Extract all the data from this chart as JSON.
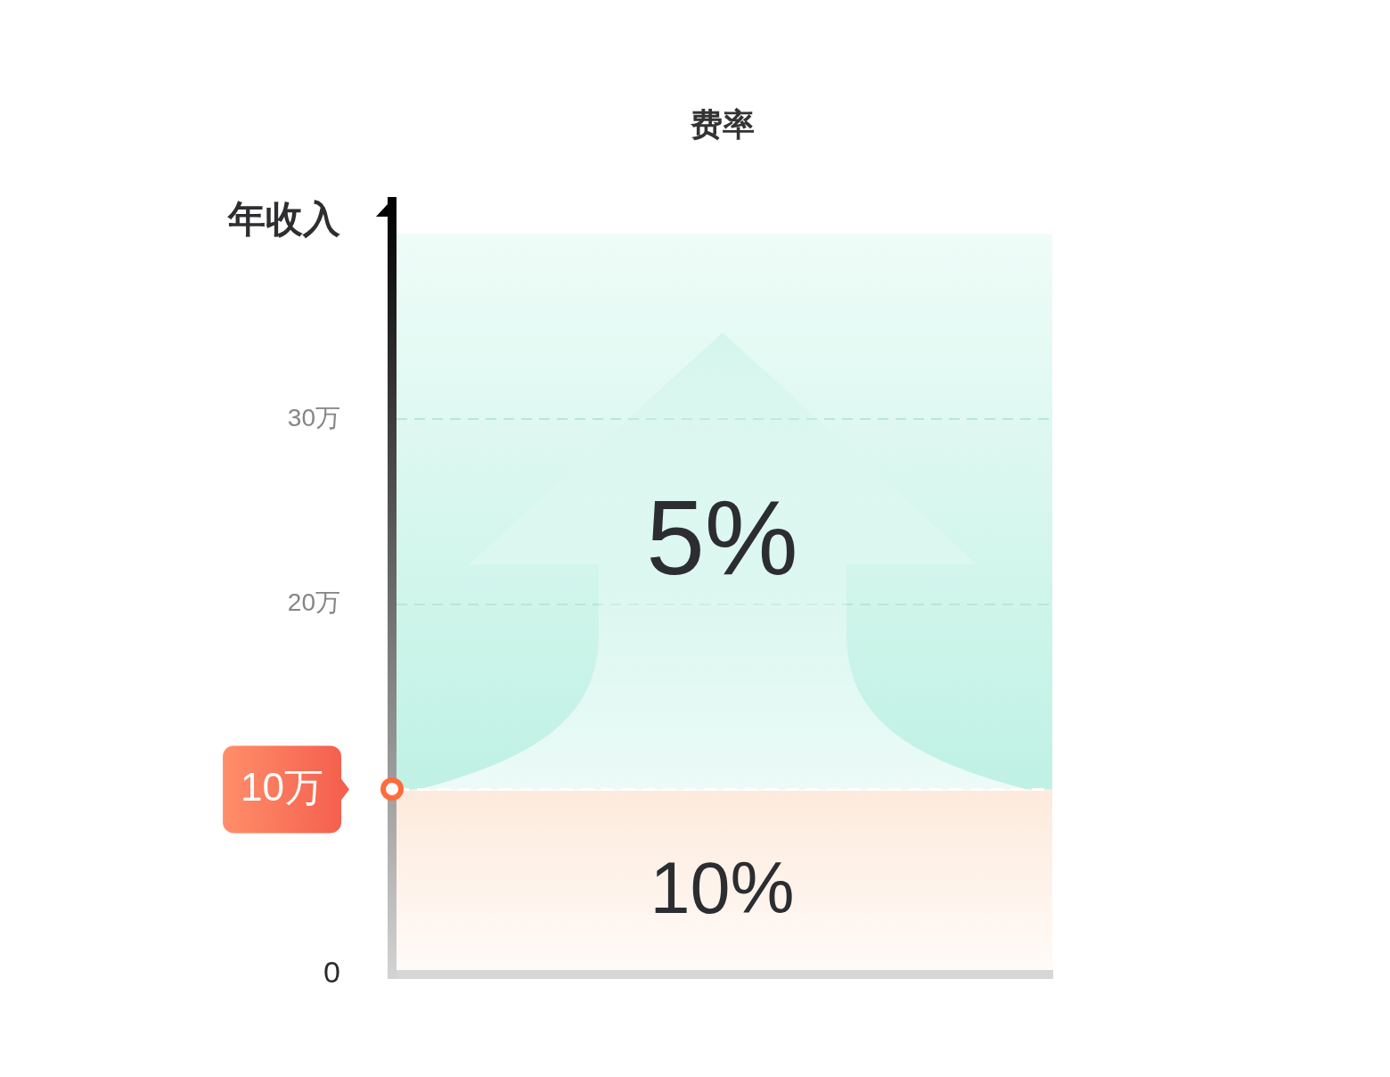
{
  "chart_data": {
    "type": "bar",
    "title": "费率",
    "ylabel": "年收入",
    "categories": [
      null
    ],
    "stacked": true,
    "series": [
      {
        "color": "#fdeadc",
        "values": [
          10
        ]
      },
      {
        "color": "#bff1e4",
        "values": [
          30
        ]
      }
    ],
    "ylim": [
      0,
      42
    ],
    "yticks": [
      0,
      {
        "value": 20,
        "label": "20万"
      },
      {
        "value": 30,
        "label": "30万"
      }
    ],
    "grid": "y",
    "legend": false,
    "ref_lines": [
      {
        "axis": "y",
        "value": 10,
        "label": "10万",
        "line_style": "dashed"
      }
    ],
    "annotations": [
      "5%",
      "10%"
    ]
  }
}
